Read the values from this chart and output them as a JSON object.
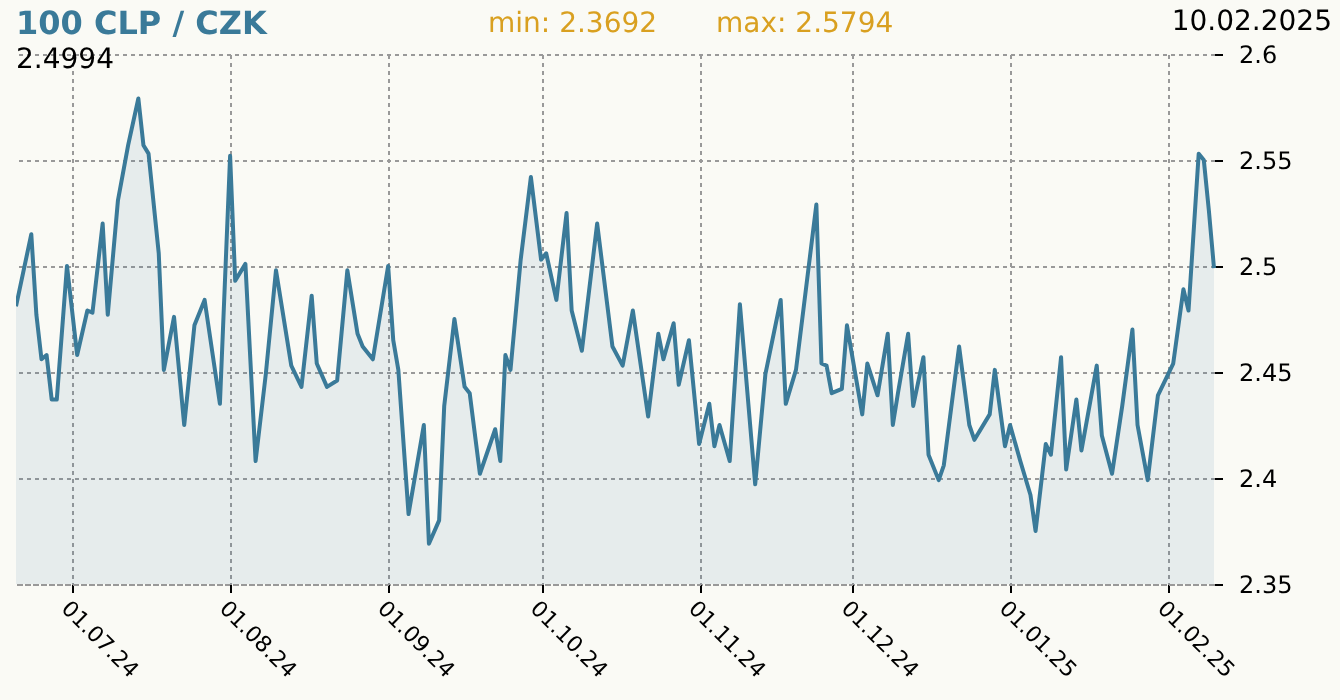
{
  "chart_data": {
    "type": "area",
    "title": "100 CLP / CZK",
    "annotations": [
      "min: 2.3692",
      "max: 2.5794",
      "10.02.2025",
      "2.4994"
    ],
    "xlim": [
      "2024-06-20",
      "2025-02-10"
    ],
    "xticks": [
      {
        "value": "2024-07-01",
        "label": "01.07.24"
      },
      {
        "value": "2024-08-01",
        "label": "01.08.24"
      },
      {
        "value": "2024-09-01",
        "label": "01.09.24"
      },
      {
        "value": "2024-10-01",
        "label": "01.10.24"
      },
      {
        "value": "2024-11-01",
        "label": "01.11.24"
      },
      {
        "value": "2024-12-01",
        "label": "01.12.24"
      },
      {
        "value": "2025-01-01",
        "label": "01.01.25"
      },
      {
        "value": "2025-02-01",
        "label": "01.02.25"
      }
    ],
    "ylim": [
      2.35,
      2.6
    ],
    "yticks": [
      2.35,
      2.4,
      2.45,
      2.5,
      2.55,
      2.6
    ],
    "grid": true,
    "series": [
      {
        "color": "#3a7a99",
        "x": [
          "2024-06-20",
          "2024-06-23",
          "2024-06-24",
          "2024-06-25",
          "2024-06-26",
          "2024-06-27",
          "2024-06-28",
          "2024-06-30",
          "2024-07-02",
          "2024-07-04",
          "2024-07-05",
          "2024-07-07",
          "2024-07-08",
          "2024-07-10",
          "2024-07-12",
          "2024-07-14",
          "2024-07-15",
          "2024-07-16",
          "2024-07-18",
          "2024-07-19",
          "2024-07-21",
          "2024-07-23",
          "2024-07-25",
          "2024-07-27",
          "2024-07-30",
          "2024-08-01",
          "2024-08-02",
          "2024-08-04",
          "2024-08-06",
          "2024-08-08",
          "2024-08-10",
          "2024-08-13",
          "2024-08-15",
          "2024-08-17",
          "2024-08-18",
          "2024-08-20",
          "2024-08-22",
          "2024-08-24",
          "2024-08-26",
          "2024-08-27",
          "2024-08-29",
          "2024-09-01",
          "2024-09-02",
          "2024-09-03",
          "2024-09-05",
          "2024-09-08",
          "2024-09-09",
          "2024-09-11",
          "2024-09-12",
          "2024-09-14",
          "2024-09-16",
          "2024-09-17",
          "2024-09-19",
          "2024-09-22",
          "2024-09-23",
          "2024-09-24",
          "2024-09-25",
          "2024-09-27",
          "2024-09-29",
          "2024-10-01",
          "2024-10-02",
          "2024-10-04",
          "2024-10-06",
          "2024-10-07",
          "2024-10-09",
          "2024-10-12",
          "2024-10-15",
          "2024-10-17",
          "2024-10-19",
          "2024-10-22",
          "2024-10-24",
          "2024-10-25",
          "2024-10-27",
          "2024-10-28",
          "2024-10-30",
          "2024-11-01",
          "2024-11-03",
          "2024-11-04",
          "2024-11-05",
          "2024-11-07",
          "2024-11-09",
          "2024-11-12",
          "2024-11-14",
          "2024-11-17",
          "2024-11-18",
          "2024-11-20",
          "2024-11-24",
          "2024-11-25",
          "2024-11-26",
          "2024-11-27",
          "2024-11-29",
          "2024-11-30",
          "2024-12-03",
          "2024-12-04",
          "2024-12-06",
          "2024-12-08",
          "2024-12-09",
          "2024-12-10",
          "2024-12-12",
          "2024-12-13",
          "2024-12-15",
          "2024-12-16",
          "2024-12-18",
          "2024-12-19",
          "2024-12-22",
          "2024-12-24",
          "2024-12-25",
          "2024-12-28",
          "2024-12-29",
          "2024-12-31",
          "2025-01-01",
          "2025-01-03",
          "2025-01-05",
          "2025-01-06",
          "2025-01-08",
          "2025-01-09",
          "2025-01-11",
          "2025-01-12",
          "2025-01-14",
          "2025-01-15",
          "2025-01-18",
          "2025-01-19",
          "2025-01-21",
          "2025-01-23",
          "2025-01-25",
          "2025-01-26",
          "2025-01-28",
          "2025-01-30",
          "2025-02-02",
          "2025-02-04",
          "2025-02-05",
          "2025-02-07",
          "2025-02-08",
          "2025-02-09",
          "2025-02-10"
        ],
        "values": [
          2.481,
          2.515,
          2.477,
          2.456,
          2.458,
          2.437,
          2.437,
          2.5,
          2.458,
          2.479,
          2.478,
          2.52,
          2.477,
          2.531,
          2.557,
          2.579,
          2.557,
          2.553,
          2.506,
          2.451,
          2.476,
          2.425,
          2.472,
          2.484,
          2.435,
          2.552,
          2.493,
          2.501,
          2.408,
          2.449,
          2.498,
          2.453,
          2.443,
          2.486,
          2.454,
          2.443,
          2.446,
          2.498,
          2.468,
          2.462,
          2.456,
          2.5,
          2.465,
          2.451,
          2.383,
          2.425,
          2.369,
          2.38,
          2.434,
          2.475,
          2.443,
          2.44,
          2.402,
          2.423,
          2.408,
          2.458,
          2.451,
          2.503,
          2.542,
          2.503,
          2.506,
          2.484,
          2.525,
          2.479,
          2.46,
          2.52,
          2.462,
          2.453,
          2.479,
          2.429,
          2.468,
          2.456,
          2.473,
          2.444,
          2.465,
          2.416,
          2.435,
          2.415,
          2.425,
          2.408,
          2.482,
          2.397,
          2.449,
          2.484,
          2.435,
          2.451,
          2.529,
          2.454,
          2.453,
          2.44,
          2.442,
          2.472,
          2.43,
          2.454,
          2.439,
          2.468,
          2.425,
          2.44,
          2.468,
          2.434,
          2.457,
          2.411,
          2.399,
          2.406,
          2.462,
          2.425,
          2.418,
          2.43,
          2.451,
          2.415,
          2.425,
          2.408,
          2.392,
          2.375,
          2.416,
          2.411,
          2.457,
          2.404,
          2.437,
          2.413,
          2.453,
          2.42,
          2.402,
          2.434,
          2.47,
          2.425,
          2.399,
          2.439,
          2.454,
          2.489,
          2.479,
          2.553,
          2.55,
          2.526,
          2.499
        ]
      }
    ]
  }
}
